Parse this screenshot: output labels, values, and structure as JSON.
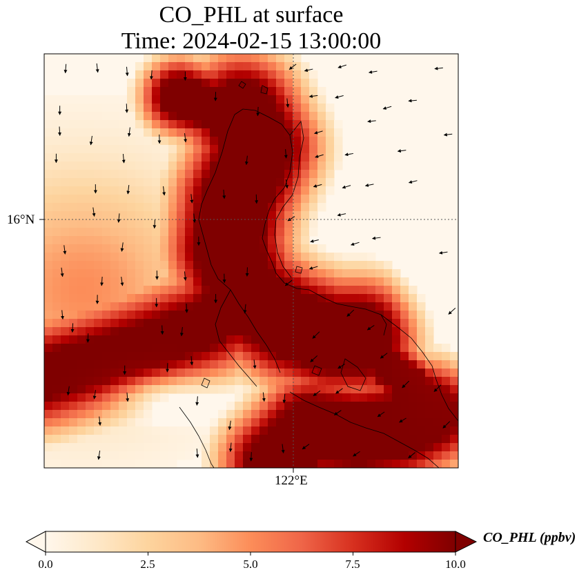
{
  "title": {
    "line1": "CO_PHL at surface",
    "line2": "Time: 2024-02-15 13:00:00"
  },
  "map": {
    "lat_tick": "16°N",
    "lon_tick": "122°E",
    "gridline_style": "dotted",
    "colormap": "OrRd"
  },
  "colorbar": {
    "label": "CO_PHL (ppbv)",
    "range": [
      0.0,
      10.0
    ],
    "extend": "both",
    "ticks": [
      "0.0",
      "2.5",
      "5.0",
      "7.5",
      "10.0"
    ],
    "colors": [
      "#fff7ec",
      "#fee8c8",
      "#fdd49e",
      "#fdbb84",
      "#fc8d59",
      "#ef6548",
      "#d7301f",
      "#b30000",
      "#7f0000"
    ]
  }
}
